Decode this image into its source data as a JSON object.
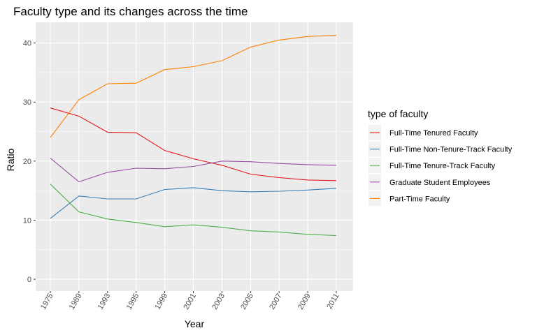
{
  "chart_data": {
    "type": "line",
    "title": "Faculty type and its changes across the time",
    "xlabel": "Year",
    "ylabel": "Ratio",
    "categories": [
      "1975",
      "1989",
      "1993",
      "1995",
      "1999",
      "2001",
      "2003",
      "2005",
      "2007",
      "2009",
      "2011"
    ],
    "ylim": [
      -2,
      43.5
    ],
    "yticks": [
      0,
      10,
      20,
      30,
      40
    ],
    "grid": true,
    "legend_title": "type of faculty",
    "legend_position": "right",
    "series": [
      {
        "name": "Full-Time Tenured Faculty",
        "color": "#e41a1c",
        "values": [
          29.0,
          27.6,
          24.9,
          24.8,
          21.8,
          20.4,
          19.3,
          17.8,
          17.2,
          16.8,
          16.7
        ]
      },
      {
        "name": "Full-Time Non-Tenure-Track Faculty",
        "color": "#377eb8",
        "values": [
          10.3,
          14.1,
          13.6,
          13.6,
          15.2,
          15.5,
          15.0,
          14.8,
          14.9,
          15.1,
          15.4
        ]
      },
      {
        "name": "Full-Time Tenure-Track Faculty",
        "color": "#4daf4a",
        "values": [
          16.1,
          11.4,
          10.2,
          9.6,
          8.9,
          9.2,
          8.8,
          8.2,
          8.0,
          7.6,
          7.4
        ]
      },
      {
        "name": "Graduate Student Employees",
        "color": "#984ea3",
        "values": [
          20.5,
          16.5,
          18.1,
          18.8,
          18.7,
          19.1,
          20.0,
          19.9,
          19.6,
          19.4,
          19.3
        ]
      },
      {
        "name": "Part-Time Faculty",
        "color": "#ff7f00",
        "values": [
          24.0,
          30.4,
          33.1,
          33.2,
          35.5,
          36.0,
          37.0,
          39.3,
          40.5,
          41.1,
          41.3
        ]
      }
    ]
  }
}
